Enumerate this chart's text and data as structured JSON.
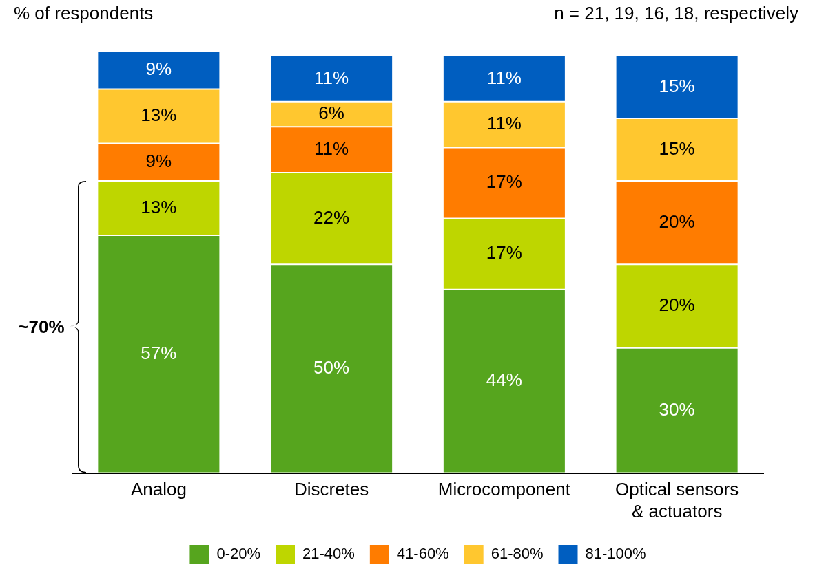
{
  "chart_data": {
    "type": "bar",
    "stacked": true,
    "legend": "bottom",
    "grid": false,
    "categories": [
      "Analog",
      "Discretes",
      "Microcomponent",
      "Optical sensors & actuators"
    ],
    "series": [
      {
        "name": "0-20%",
        "color": "#56a51e",
        "values": [
          57,
          50,
          44,
          30
        ],
        "value_labels": [
          "57%",
          "50%",
          "44%",
          "30%"
        ]
      },
      {
        "name": "21-40%",
        "color": "#bed600",
        "values": [
          13,
          22,
          17,
          20
        ],
        "value_labels": [
          "13%",
          "22%",
          "17%",
          "20%"
        ]
      },
      {
        "name": "41-60%",
        "color": "#ff7c00",
        "values": [
          9,
          11,
          17,
          20
        ],
        "value_labels": [
          "9%",
          "11%",
          "17%",
          "20%"
        ]
      },
      {
        "name": "61-80%",
        "color": "#ffc72f",
        "values": [
          13,
          6,
          11,
          15
        ],
        "value_labels": [
          "13%",
          "6%",
          "11%",
          "15%"
        ]
      },
      {
        "name": "81-100%",
        "color": "#005ec0",
        "values": [
          9,
          11,
          11,
          15
        ],
        "value_labels": [
          "9%",
          "11%",
          "11%",
          "15%"
        ]
      }
    ],
    "annotations": [
      "% of respondents",
      "n = 21, 19, 16, 18, respectively",
      "~70%"
    ]
  }
}
